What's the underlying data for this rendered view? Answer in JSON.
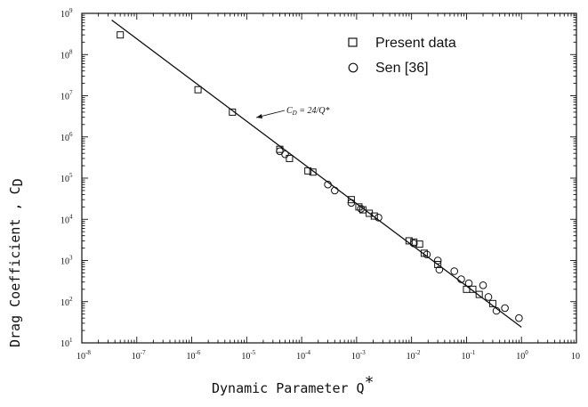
{
  "chart_data": {
    "type": "scatter",
    "xscale": "log",
    "yscale": "log",
    "xlim": [
      1e-08,
      10
    ],
    "ylim": [
      10,
      1000000000.0
    ],
    "xticks": [
      {
        "base": "10",
        "exp": "-8"
      },
      {
        "base": "10",
        "exp": "-7"
      },
      {
        "base": "10",
        "exp": "-6"
      },
      {
        "base": "10",
        "exp": "-5"
      },
      {
        "base": "10",
        "exp": "-4"
      },
      {
        "base": "10",
        "exp": "-3"
      },
      {
        "base": "10",
        "exp": "-2"
      },
      {
        "base": "10",
        "exp": "-1"
      },
      {
        "base": "10",
        "exp": "0"
      },
      {
        "base": "10",
        "exp": ""
      }
    ],
    "yticks": [
      {
        "base": "10",
        "exp": "1"
      },
      {
        "base": "10",
        "exp": "2"
      },
      {
        "base": "10",
        "exp": "3"
      },
      {
        "base": "10",
        "exp": "4"
      },
      {
        "base": "10",
        "exp": "5"
      },
      {
        "base": "10",
        "exp": "6"
      },
      {
        "base": "10",
        "exp": "7"
      },
      {
        "base": "10",
        "exp": "8"
      },
      {
        "base": "10",
        "exp": "9"
      }
    ],
    "xlabel_main": "Dynamic Parameter Q",
    "xlabel_sup": "*",
    "ylabel_main": "Drag Coefficient , C",
    "ylabel_sub": "D",
    "grid": false,
    "legend_position": "top-right",
    "annotation": {
      "text": "C",
      "sub": "D",
      "rest": " = 24/Q*"
    },
    "fit_line": {
      "x_range": [
        3.5e-08,
        1.0
      ],
      "y_equation": "24/x"
    },
    "series": [
      {
        "name": "Present data",
        "marker": "square",
        "points": [
          [
            5e-08,
            300000000.0
          ],
          [
            1.3e-06,
            14000000.0
          ],
          [
            5.5e-06,
            4000000.0
          ],
          [
            4e-05,
            500000.0
          ],
          [
            6e-05,
            300000.0
          ],
          [
            0.00013,
            150000.0
          ],
          [
            0.00016,
            140000.0
          ],
          [
            0.0008,
            30000.0
          ],
          [
            0.0011,
            20000.0
          ],
          [
            0.0013,
            17000.0
          ],
          [
            0.0017,
            14000.0
          ],
          [
            0.0021,
            12000.0
          ],
          [
            0.009,
            3000.0
          ],
          [
            0.011,
            2800.0
          ],
          [
            0.014,
            2500.0
          ],
          [
            0.017,
            1500.0
          ],
          [
            0.03,
            800.0
          ],
          [
            0.1,
            200.0
          ],
          [
            0.13,
            200.0
          ],
          [
            0.17,
            150.0
          ],
          [
            0.3,
            90.0
          ]
        ]
      },
      {
        "name": "Sen [36]",
        "marker": "circle",
        "points": [
          [
            4e-05,
            450000.0
          ],
          [
            5e-05,
            380000.0
          ],
          [
            0.0003,
            70000.0
          ],
          [
            0.0004,
            50000.0
          ],
          [
            0.0008,
            25000.0
          ],
          [
            0.0012,
            18000.0
          ],
          [
            0.0025,
            11000.0
          ],
          [
            0.011,
            2600.0
          ],
          [
            0.019,
            1400.0
          ],
          [
            0.03,
            1000.0
          ],
          [
            0.032,
            600.0
          ],
          [
            0.06,
            550.0
          ],
          [
            0.08,
            350.0
          ],
          [
            0.11,
            280.0
          ],
          [
            0.2,
            250.0
          ],
          [
            0.25,
            130.0
          ],
          [
            0.35,
            60.0
          ],
          [
            0.5,
            70.0
          ],
          [
            0.9,
            40.0
          ]
        ]
      }
    ]
  }
}
